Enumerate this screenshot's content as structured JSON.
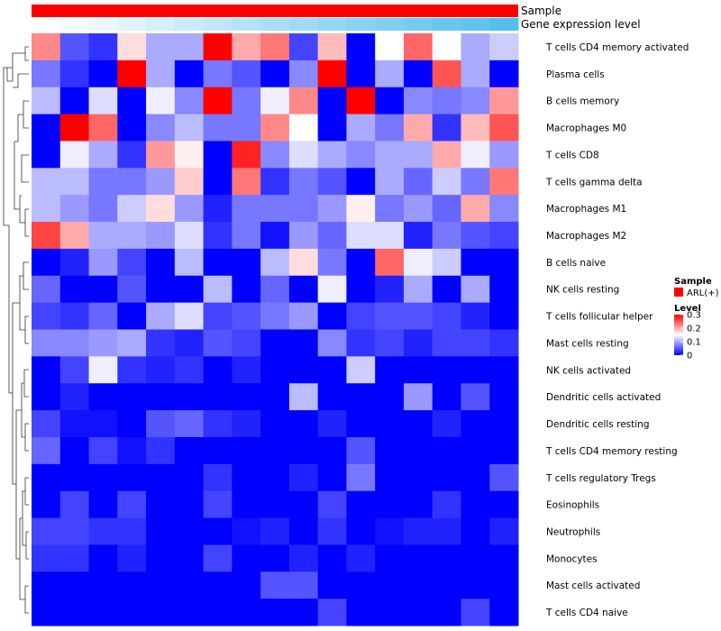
{
  "chart_data": {
    "type": "heatmap",
    "annotation_tracks": [
      {
        "label": "Sample",
        "color": "#ff0000"
      },
      {
        "label": "Gene expression level",
        "colors": [
          "#ffffff",
          "#f4fbfe",
          "#eaf7fd",
          "#dff3fb",
          "#d4eff9",
          "#c9ebf8",
          "#bfe7f7",
          "#b4e3f6",
          "#a9dff5",
          "#9fdbf4",
          "#94d7f3",
          "#89d3f2",
          "#7fcff1",
          "#74cbf0",
          "#69c7ef",
          "#5fc3ee",
          "#54bfed"
        ]
      }
    ],
    "rows": [
      "T cells CD4 memory activated",
      "Plasma cells",
      "B cells memory",
      "Macrophages M0",
      "T cells CD8",
      "T cells gamma delta",
      "Macrophages M1",
      "Macrophages M2",
      "B cells naive",
      "NK cells resting",
      "T cells follicular helper",
      "Mast cells resting",
      "NK cells activated",
      "Dendritic cells activated",
      "Dendritic cells resting",
      "T cells CD4 memory resting",
      "T cells regulatory  Tregs",
      "Eosinophils",
      "Neutrophils",
      "Monocytes",
      "Mast cells activated",
      "T cells CD4 naive"
    ],
    "values": [
      [
        0.22,
        0.05,
        0.03,
        0.17,
        0.1,
        0.1,
        0.3,
        0.2,
        0.23,
        0.04,
        0.19,
        0.0,
        0.15,
        0.24,
        0.15,
        0.1,
        0.12
      ],
      [
        0.07,
        0.03,
        0.0,
        0.3,
        0.1,
        0.0,
        0.07,
        0.05,
        0.0,
        0.08,
        0.3,
        0.0,
        0.1,
        0.0,
        0.25,
        0.1,
        0.0
      ],
      [
        0.11,
        0.0,
        0.13,
        0.0,
        0.14,
        0.08,
        0.3,
        0.07,
        0.14,
        0.22,
        0.0,
        0.3,
        0.0,
        0.08,
        0.07,
        0.08,
        0.21
      ],
      [
        0.0,
        0.3,
        0.24,
        0.0,
        0.08,
        0.11,
        0.07,
        0.07,
        0.22,
        0.15,
        0.0,
        0.1,
        0.07,
        0.2,
        0.03,
        0.19,
        0.25
      ],
      [
        0.0,
        0.14,
        0.1,
        0.03,
        0.21,
        0.16,
        0.0,
        0.28,
        0.08,
        0.13,
        0.1,
        0.08,
        0.1,
        0.1,
        0.2,
        0.14,
        0.09
      ],
      [
        0.11,
        0.11,
        0.07,
        0.07,
        0.09,
        0.18,
        0.0,
        0.23,
        0.03,
        0.07,
        0.05,
        0.0,
        0.1,
        0.06,
        0.12,
        0.07,
        0.23
      ],
      [
        0.11,
        0.09,
        0.07,
        0.12,
        0.17,
        0.09,
        0.02,
        0.07,
        0.07,
        0.07,
        0.09,
        0.16,
        0.07,
        0.09,
        0.06,
        0.2,
        0.08
      ],
      [
        0.26,
        0.2,
        0.1,
        0.1,
        0.09,
        0.13,
        0.03,
        0.07,
        0.01,
        0.09,
        0.06,
        0.13,
        0.13,
        0.02,
        0.07,
        0.05,
        0.04
      ],
      [
        0.0,
        0.02,
        0.09,
        0.04,
        0.0,
        0.11,
        0.0,
        0.0,
        0.11,
        0.17,
        0.07,
        0.0,
        0.24,
        0.14,
        0.12,
        0.0,
        0.0
      ],
      [
        0.06,
        0.0,
        0.0,
        0.05,
        0.0,
        0.0,
        0.11,
        0.0,
        0.06,
        0.0,
        0.14,
        0.0,
        0.02,
        0.1,
        0.0,
        0.1,
        0.0
      ],
      [
        0.04,
        0.03,
        0.06,
        0.0,
        0.1,
        0.13,
        0.04,
        0.05,
        0.07,
        0.09,
        0.0,
        0.04,
        0.05,
        0.05,
        0.04,
        0.02,
        0.0
      ],
      [
        0.08,
        0.08,
        0.09,
        0.1,
        0.03,
        0.02,
        0.05,
        0.04,
        0.0,
        0.0,
        0.08,
        0.03,
        0.04,
        0.02,
        0.04,
        0.04,
        0.03
      ],
      [
        0.0,
        0.04,
        0.14,
        0.03,
        0.02,
        0.03,
        0.0,
        0.02,
        0.0,
        0.0,
        0.0,
        0.12,
        0.0,
        0.0,
        0.0,
        0.0,
        0.0
      ],
      [
        0.0,
        0.02,
        0.0,
        0.0,
        0.0,
        0.0,
        0.0,
        0.0,
        0.0,
        0.11,
        0.0,
        0.0,
        0.0,
        0.09,
        0.0,
        0.05,
        0.0
      ],
      [
        0.04,
        0.01,
        0.01,
        0.0,
        0.05,
        0.06,
        0.03,
        0.02,
        0.0,
        0.0,
        0.02,
        0.0,
        0.0,
        0.0,
        0.02,
        0.0,
        0.0
      ],
      [
        0.06,
        0.0,
        0.04,
        0.01,
        0.03,
        0.0,
        0.0,
        0.0,
        0.0,
        0.0,
        0.0,
        0.05,
        0.0,
        0.0,
        0.0,
        0.0,
        0.0
      ],
      [
        0.0,
        0.0,
        0.0,
        0.0,
        0.0,
        0.0,
        0.03,
        0.0,
        0.0,
        0.02,
        0.0,
        0.07,
        0.0,
        0.0,
        0.0,
        0.0,
        0.05
      ],
      [
        0.0,
        0.04,
        0.0,
        0.04,
        0.0,
        0.0,
        0.04,
        0.0,
        0.0,
        0.0,
        0.04,
        0.0,
        0.0,
        0.0,
        0.03,
        0.0,
        0.0
      ],
      [
        0.04,
        0.04,
        0.03,
        0.03,
        0.0,
        0.0,
        0.0,
        0.01,
        0.02,
        0.0,
        0.03,
        0.0,
        0.01,
        0.02,
        0.02,
        0.0,
        0.02
      ],
      [
        0.03,
        0.03,
        0.0,
        0.02,
        0.0,
        0.0,
        0.04,
        0.0,
        0.0,
        0.02,
        0.0,
        0.02,
        0.0,
        0.0,
        0.0,
        0.0,
        0.0
      ],
      [
        0.0,
        0.0,
        0.0,
        0.0,
        0.0,
        0.0,
        0.0,
        0.0,
        0.05,
        0.05,
        0.0,
        0.0,
        0.0,
        0.0,
        0.0,
        0.0,
        0.0
      ],
      [
        0.0,
        0.0,
        0.0,
        0.0,
        0.0,
        0.0,
        0.0,
        0.0,
        0.0,
        0.0,
        0.04,
        0.0,
        0.0,
        0.0,
        0.0,
        0.04,
        0.0
      ]
    ],
    "color_scale": {
      "min": 0,
      "max": 0.3,
      "colors": [
        "#0000ff",
        "#ffffff",
        "#ff0000"
      ],
      "mid": 0.15
    },
    "legend": {
      "sample_title": "Sample",
      "sample_entry": "ARL(+)",
      "sample_color": "#ff0000",
      "level_title": "Level",
      "level_ticks": [
        "0.3",
        "0.2",
        "0.1",
        "0"
      ],
      "level_tick_values": [
        0.3,
        0.2,
        0.1,
        0
      ]
    },
    "dendrogram": "row clustering dendrogram (left side)"
  }
}
